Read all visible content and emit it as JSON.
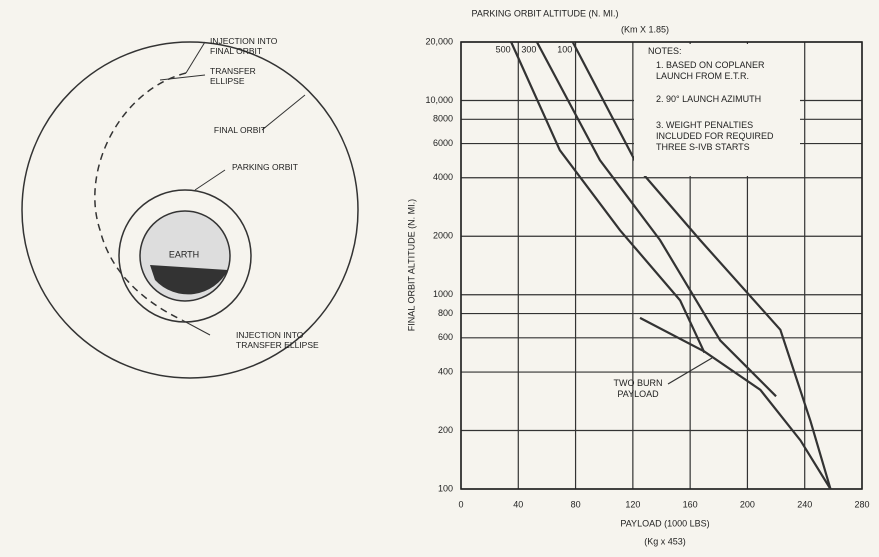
{
  "diagram": {
    "labels": [
      "INJECTION INTO FINAL ORBIT",
      "TRANSFER ELLIPSE",
      "FINAL ORBIT",
      "PARKING ORBIT",
      "EARTH",
      "INJECTION INTO TRANSFER ELLIPSE"
    ]
  },
  "chart_data": {
    "type": "line",
    "title": "PARKING ORBIT ALTITUDE (N. MI.)",
    "subtitle": "(Km X 1.85)",
    "x_label": "PAYLOAD (1000 LBS)",
    "x_sublabel": "(Kg x 453)",
    "y_label": "FINAL ORBIT ALTITUDE (N. MI.)",
    "notes_title": "NOTES:",
    "notes": [
      "1.  BASED ON COPLANER LAUNCH FROM E.T.R.",
      "2.  90° LAUNCH AZIMUTH",
      "3.  WEIGHT PENALTIES INCLUDED FOR REQUIRED THREE S-IVB STARTS"
    ],
    "log_y": true,
    "grid": true,
    "xlim": [
      0,
      280
    ],
    "xticks": [
      0,
      40,
      80,
      120,
      160,
      200,
      240,
      280
    ],
    "ylim": [
      100,
      20000
    ],
    "yticks": [
      100,
      200,
      400,
      600,
      800,
      1000,
      2000,
      4000,
      6000,
      8000,
      {
        "value": 10000,
        "label": "10,000"
      },
      {
        "value": 20000,
        "label": "20,000"
      }
    ],
    "series": [
      {
        "name": "500",
        "color": "#333333",
        "x": [
          35,
          69,
          111,
          153,
          170
        ],
        "values": [
          20000,
          5550,
          2150,
          935,
          503
        ]
      },
      {
        "name": "300",
        "color": "#333333",
        "x": [
          53,
          97,
          139,
          181,
          220
        ],
        "values": [
          20000,
          4930,
          1910,
          582,
          300
        ]
      },
      {
        "name": "100",
        "color": "#333333",
        "x": [
          78,
          125,
          167,
          223,
          244,
          258
        ],
        "values": [
          20000,
          4370,
          1910,
          660,
          224,
          100
        ]
      },
      {
        "name": "TWO BURN PAYLOAD",
        "color": "#333333",
        "x": [
          125,
          170,
          209,
          237,
          258
        ],
        "values": [
          760,
          510,
          324,
          178,
          100
        ]
      }
    ]
  }
}
